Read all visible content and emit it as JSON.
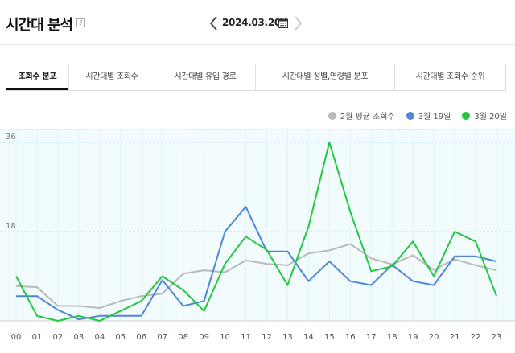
{
  "header": {
    "title": "시간대 분석",
    "help_glyph": "?",
    "date": "2024.03.20."
  },
  "tabs": [
    {
      "label": "조회수 분포",
      "active": true
    },
    {
      "label": "시간대별 조회수",
      "active": false
    },
    {
      "label": "시간대별 유입 경로",
      "active": false
    },
    {
      "label": "시간대별 성별,연령별 분포",
      "active": false
    },
    {
      "label": "시간대별 조회수 순위",
      "active": false
    }
  ],
  "legend": [
    {
      "label": "2월 평균 조회수",
      "color": "#b9b9b9"
    },
    {
      "label": "3월 19일",
      "color": "#4f86d6"
    },
    {
      "label": "3월 20일",
      "color": "#21c840"
    }
  ],
  "chart_data": {
    "type": "line",
    "x": [
      "00",
      "01",
      "02",
      "03",
      "04",
      "05",
      "06",
      "07",
      "08",
      "09",
      "10",
      "11",
      "12",
      "13",
      "14",
      "15",
      "16",
      "17",
      "18",
      "19",
      "20",
      "21",
      "22",
      "23"
    ],
    "ylim": [
      0,
      36
    ],
    "y_ticks": [
      18,
      36
    ],
    "grid": true,
    "legend_position": "top-right",
    "series": [
      {
        "name": "2월 평균 조회수",
        "color": "#b9b9b9",
        "values": [
          7,
          6.8,
          3,
          3,
          2.6,
          4,
          5,
          5.5,
          9.5,
          10.2,
          9.8,
          12.2,
          11.5,
          11.2,
          13.6,
          14.2,
          15.5,
          12.6,
          11.4,
          13.2,
          10.3,
          12.4,
          11.2,
          10.2
        ]
      },
      {
        "name": "3월 19일",
        "color": "#4f86d6",
        "values": [
          5,
          5,
          2.2,
          0.3,
          1,
          1,
          1,
          8.2,
          3,
          4,
          18,
          23,
          14,
          14,
          8,
          12,
          8,
          7.2,
          11.3,
          8,
          7.2,
          13,
          13,
          12
        ]
      },
      {
        "name": "3월 20일",
        "color": "#21c840",
        "values": [
          9,
          1,
          0,
          1,
          0,
          2,
          4,
          9,
          6.2,
          2,
          11.5,
          17,
          14.3,
          7.2,
          19,
          36,
          22,
          10,
          11,
          16,
          9,
          18,
          16,
          5
        ]
      }
    ]
  }
}
